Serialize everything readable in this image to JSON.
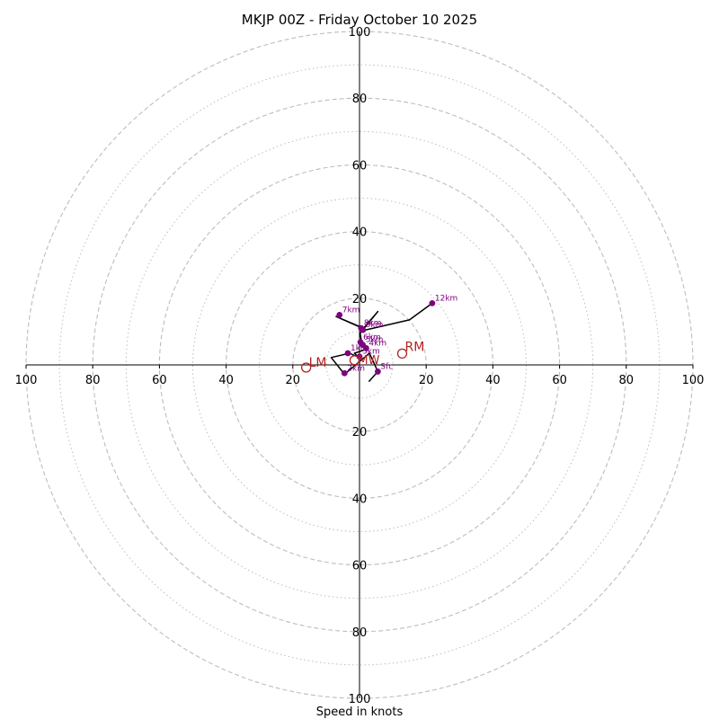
{
  "chart_data": {
    "type": "hodograph",
    "title": "MKJP 00Z - Friday October 10 2025",
    "xlabel": "Speed in knots",
    "units": "knots",
    "range": [
      -100,
      100
    ],
    "ring_major": [
      20,
      40,
      60,
      80,
      100
    ],
    "ring_minor": [
      10,
      30,
      50,
      70,
      90
    ],
    "axis_ticks": [
      {
        "label": "100",
        "value": -100
      },
      {
        "label": "80",
        "value": -80
      },
      {
        "label": "60",
        "value": -60
      },
      {
        "label": "40",
        "value": -40
      },
      {
        "label": "20",
        "value": -20
      },
      {
        "label": "20",
        "value": 20
      },
      {
        "label": "40",
        "value": 40
      },
      {
        "label": "60",
        "value": 60
      },
      {
        "label": "80",
        "value": 80
      },
      {
        "label": "100",
        "value": 100
      }
    ],
    "trace": [
      {
        "u": 2.8,
        "v": -5.0
      },
      {
        "u": 5.5,
        "v": -2.0
      },
      {
        "u": 3.0,
        "v": 3.5
      },
      {
        "u": -4.5,
        "v": -2.8
      },
      {
        "u": -8.5,
        "v": 2.2
      },
      {
        "u": -3.0,
        "v": 3.5
      },
      {
        "u": -0.3,
        "v": 2.3
      },
      {
        "u": -1.5,
        "v": 3.5
      },
      {
        "u": 1.5,
        "v": 4.5
      },
      {
        "u": 0.5,
        "v": 7.5
      },
      {
        "u": 0.2,
        "v": 9.5
      },
      {
        "u": 5.5,
        "v": 16.0
      },
      {
        "u": 1.2,
        "v": 11.0
      },
      {
        "u": -7.0,
        "v": 14.5
      },
      {
        "u": 2.0,
        "v": 10.5
      },
      {
        "u": 15.0,
        "v": 13.5
      },
      {
        "u": 21.8,
        "v": 18.5
      }
    ],
    "points": [
      {
        "label": "Sfc",
        "u": 5.5,
        "v": -2.0
      },
      {
        "label": "1km",
        "u": -3.5,
        "v": 3.5
      },
      {
        "label": "2km",
        "u": -4.5,
        "v": -2.5
      },
      {
        "label": "3km",
        "u": 0.0,
        "v": 2.5
      },
      {
        "label": "4km",
        "u": 2.0,
        "v": 5.0
      },
      {
        "label": "5km",
        "u": 1.0,
        "v": 6.0
      },
      {
        "label": "6km",
        "u": 0.3,
        "v": 6.8
      },
      {
        "label": "7km",
        "u": -6.0,
        "v": 15.0
      },
      {
        "label": "8km",
        "u": 0.5,
        "v": 11.0
      },
      {
        "label": "9km",
        "u": 1.0,
        "v": 10.5
      },
      {
        "label": "12km",
        "u": 21.8,
        "v": 18.5
      }
    ],
    "storm_motion": [
      {
        "label": "RM",
        "u": 12.8,
        "v": 3.4
      },
      {
        "label": "LM",
        "u": -16.0,
        "v": -0.8
      },
      {
        "label": "MW",
        "u": -1.5,
        "v": 1.4
      }
    ],
    "colors": {
      "trace": "#000000",
      "points": "#800080",
      "storm_motion": "#b22222",
      "grid": "#bdbdbd",
      "axis": "#000000"
    }
  }
}
